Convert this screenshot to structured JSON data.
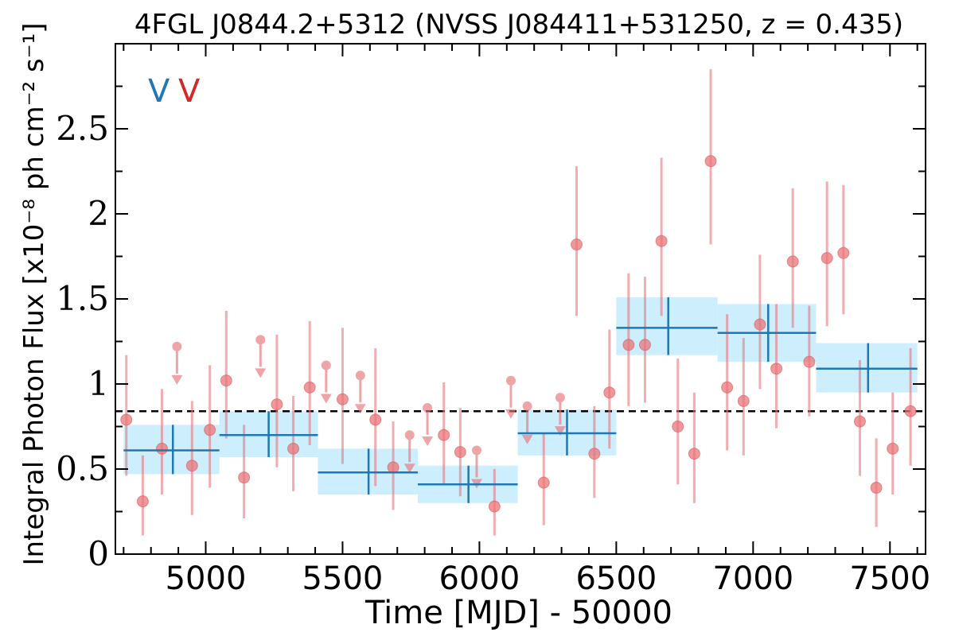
{
  "chart_data": {
    "type": "scatter",
    "title": "4FGL J0844.2+5312 (NVSS J084411+531250, z = 0.435)",
    "xlabel": "Time [MJD] - 50000",
    "ylabel": "Integral Photon Flux [x10⁻⁸ ph cm⁻² s⁻¹]",
    "xlim": [
      4670,
      7630
    ],
    "ylim": [
      0,
      3.0
    ],
    "xticks": [
      "5000",
      "5500",
      "6000",
      "6500",
      "7000",
      "7500"
    ],
    "yticks": [
      "0",
      "0.5",
      "1",
      "1.5",
      "2",
      "2.5"
    ],
    "grid": false,
    "legend_markers": [
      {
        "symbol": "V",
        "color": "#1f77b4"
      },
      {
        "symbol": "V",
        "color": "#d62728"
      }
    ],
    "reference_line": {
      "y": 0.84,
      "style": "dashed",
      "color": "#000000"
    },
    "binned_series": {
      "color": "#1f77b4",
      "band_color": "#cdeefd",
      "points": [
        {
          "x": 4880,
          "x_lo": 4700,
          "x_hi": 5050,
          "y": 0.61,
          "y_lo": 0.47,
          "y_hi": 0.76
        },
        {
          "x": 5230,
          "x_lo": 5050,
          "x_hi": 5410,
          "y": 0.7,
          "y_lo": 0.57,
          "y_hi": 0.84
        },
        {
          "x": 5595,
          "x_lo": 5410,
          "x_hi": 5775,
          "y": 0.48,
          "y_lo": 0.35,
          "y_hi": 0.62
        },
        {
          "x": 5960,
          "x_lo": 5775,
          "x_hi": 6140,
          "y": 0.41,
          "y_lo": 0.3,
          "y_hi": 0.52
        },
        {
          "x": 6320,
          "x_lo": 6140,
          "x_hi": 6500,
          "y": 0.71,
          "y_lo": 0.58,
          "y_hi": 0.85
        },
        {
          "x": 6690,
          "x_lo": 6500,
          "x_hi": 6870,
          "y": 1.33,
          "y_lo": 1.17,
          "y_hi": 1.51
        },
        {
          "x": 7055,
          "x_lo": 6870,
          "x_hi": 7230,
          "y": 1.3,
          "y_lo": 1.13,
          "y_hi": 1.47
        },
        {
          "x": 7420,
          "x_lo": 7230,
          "x_hi": 7600,
          "y": 1.09,
          "y_lo": 0.95,
          "y_hi": 1.24
        }
      ]
    },
    "detections": {
      "color": "#e8767a",
      "points": [
        {
          "x": 4710,
          "y": 0.79,
          "y_lo": 0.46,
          "y_hi": 1.17
        },
        {
          "x": 4770,
          "y": 0.31,
          "y_lo": 0.11,
          "y_hi": 0.58
        },
        {
          "x": 4840,
          "y": 0.62,
          "y_lo": 0.35,
          "y_hi": 0.97
        },
        {
          "x": 4950,
          "y": 0.52,
          "y_lo": 0.23,
          "y_hi": 0.9
        },
        {
          "x": 5015,
          "y": 0.73,
          "y_lo": 0.39,
          "y_hi": 1.11
        },
        {
          "x": 5075,
          "y": 1.02,
          "y_lo": 0.68,
          "y_hi": 1.43
        },
        {
          "x": 5140,
          "y": 0.45,
          "y_lo": 0.21,
          "y_hi": 0.76
        },
        {
          "x": 5260,
          "y": 0.88,
          "y_lo": 0.51,
          "y_hi": 1.29
        },
        {
          "x": 5320,
          "y": 0.62,
          "y_lo": 0.37,
          "y_hi": 0.93
        },
        {
          "x": 5380,
          "y": 0.98,
          "y_lo": 0.64,
          "y_hi": 1.37
        },
        {
          "x": 5500,
          "y": 0.91,
          "y_lo": 0.53,
          "y_hi": 1.33
        },
        {
          "x": 5620,
          "y": 0.79,
          "y_lo": 0.4,
          "y_hi": 1.21
        },
        {
          "x": 5685,
          "y": 0.51,
          "y_lo": 0.26,
          "y_hi": 0.78
        },
        {
          "x": 5870,
          "y": 0.7,
          "y_lo": 0.41,
          "y_hi": 1.01
        },
        {
          "x": 5930,
          "y": 0.6,
          "y_lo": 0.34,
          "y_hi": 0.86
        },
        {
          "x": 6055,
          "y": 0.28,
          "y_lo": 0.11,
          "y_hi": 0.5
        },
        {
          "x": 6235,
          "y": 0.42,
          "y_lo": 0.17,
          "y_hi": 0.71
        },
        {
          "x": 6355,
          "y": 1.82,
          "y_lo": 1.4,
          "y_hi": 2.28
        },
        {
          "x": 6420,
          "y": 0.59,
          "y_lo": 0.33,
          "y_hi": 0.87
        },
        {
          "x": 6475,
          "y": 0.95,
          "y_lo": 0.62,
          "y_hi": 1.32
        },
        {
          "x": 6545,
          "y": 1.23,
          "y_lo": 0.87,
          "y_hi": 1.65
        },
        {
          "x": 6605,
          "y": 1.23,
          "y_lo": 0.89,
          "y_hi": 1.63
        },
        {
          "x": 6665,
          "y": 1.84,
          "y_lo": 1.4,
          "y_hi": 2.33
        },
        {
          "x": 6725,
          "y": 0.75,
          "y_lo": 0.41,
          "y_hi": 1.15
        },
        {
          "x": 6785,
          "y": 0.59,
          "y_lo": 0.3,
          "y_hi": 0.95
        },
        {
          "x": 6845,
          "y": 2.31,
          "y_lo": 1.82,
          "y_hi": 2.85
        },
        {
          "x": 6905,
          "y": 0.98,
          "y_lo": 0.61,
          "y_hi": 1.41
        },
        {
          "x": 6965,
          "y": 0.9,
          "y_lo": 0.58,
          "y_hi": 1.27
        },
        {
          "x": 7025,
          "y": 1.35,
          "y_lo": 0.97,
          "y_hi": 1.76
        },
        {
          "x": 7085,
          "y": 1.09,
          "y_lo": 0.74,
          "y_hi": 1.47
        },
        {
          "x": 7145,
          "y": 1.72,
          "y_lo": 1.33,
          "y_hi": 2.15
        },
        {
          "x": 7205,
          "y": 1.13,
          "y_lo": 0.81,
          "y_hi": 1.46
        },
        {
          "x": 7270,
          "y": 1.74,
          "y_lo": 1.34,
          "y_hi": 2.19
        },
        {
          "x": 7330,
          "y": 1.77,
          "y_lo": 1.41,
          "y_hi": 2.17
        },
        {
          "x": 7390,
          "y": 0.78,
          "y_lo": 0.46,
          "y_hi": 1.14
        },
        {
          "x": 7450,
          "y": 0.39,
          "y_lo": 0.16,
          "y_hi": 0.68
        },
        {
          "x": 7510,
          "y": 0.62,
          "y_lo": 0.35,
          "y_hi": 0.95
        },
        {
          "x": 7575,
          "y": 0.84,
          "y_lo": 0.52,
          "y_hi": 1.21
        }
      ]
    },
    "upper_limits": {
      "color": "#e8767a",
      "points": [
        {
          "x": 4895,
          "y": 1.22
        },
        {
          "x": 5200,
          "y": 1.26
        },
        {
          "x": 5440,
          "y": 1.11
        },
        {
          "x": 5565,
          "y": 1.05
        },
        {
          "x": 5745,
          "y": 0.7
        },
        {
          "x": 5810,
          "y": 0.86
        },
        {
          "x": 5990,
          "y": 0.61
        },
        {
          "x": 6115,
          "y": 1.02
        },
        {
          "x": 6175,
          "y": 0.87
        },
        {
          "x": 6295,
          "y": 0.92
        }
      ]
    }
  }
}
